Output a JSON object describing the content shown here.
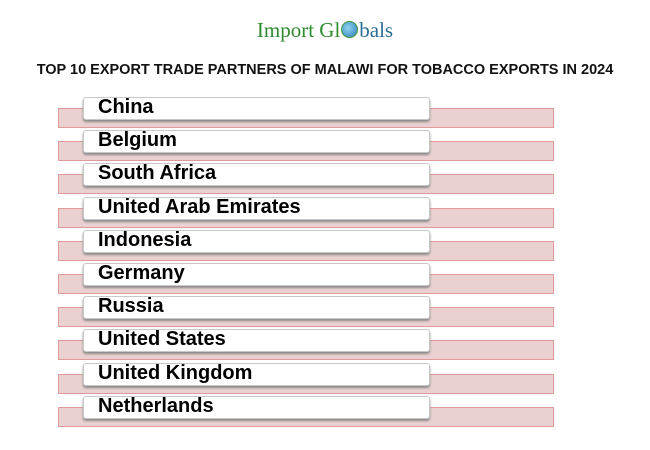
{
  "logo": {
    "part1": "Import Gl",
    "part2": "bals"
  },
  "title": "TOP 10 EXPORT TRADE PARTNERS OF MALAWI FOR TOBACCO EXPORTS IN 2024",
  "partners": [
    "China",
    "Belgium",
    "South Africa",
    "United Arab Emirates",
    "Indonesia",
    "Germany",
    "Russia",
    "United States",
    "United Kingdom",
    "Netherlands"
  ],
  "colors": {
    "bar_fill": "#ead0d0",
    "bar_border": "#e09a9a",
    "logo_green": "#2e8b2e",
    "logo_blue": "#2a6f97"
  }
}
